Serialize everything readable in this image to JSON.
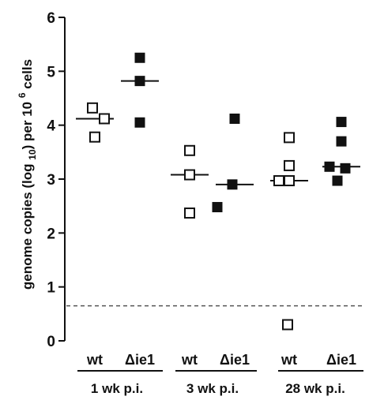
{
  "chart_data": {
    "type": "scatter",
    "ylabel": "genome copies (log 10) per 10 6 cells",
    "ylabel_parts": {
      "pre": "genome copies (log ",
      "sub": "10",
      "mid": ") per 10 ",
      "sup": "6",
      "post": " cells"
    },
    "ylim": [
      0,
      6
    ],
    "yticks": [
      "0",
      "1",
      "2",
      "3",
      "4",
      "5",
      "6"
    ],
    "threshold": 0.65,
    "groups": [
      {
        "label": "wt",
        "timepoint": "1 wk p.i.",
        "filled": false,
        "median": 4.12,
        "values": [
          4.32,
          4.12,
          3.78
        ]
      },
      {
        "label": "Δie1",
        "timepoint": "1 wk p.i.",
        "filled": true,
        "median": 4.82,
        "values": [
          5.25,
          4.82,
          4.05
        ]
      },
      {
        "label": "wt",
        "timepoint": "3 wk p.i.",
        "filled": false,
        "median": 3.08,
        "values": [
          3.53,
          3.08,
          2.37
        ]
      },
      {
        "label": "Δie1",
        "timepoint": "3 wk p.i.",
        "filled": true,
        "median": 2.9,
        "values": [
          4.12,
          2.9,
          2.48
        ]
      },
      {
        "label": "wt",
        "timepoint": "28 wk p.i.",
        "filled": false,
        "median": 2.97,
        "values": [
          3.77,
          3.25,
          2.97,
          2.97,
          0.3
        ]
      },
      {
        "label": "Δie1",
        "timepoint": "28 wk p.i.",
        "filled": true,
        "median": 3.23,
        "values": [
          4.06,
          3.7,
          3.23,
          3.2,
          2.97
        ]
      }
    ],
    "timepoints": [
      "1 wk p.i.",
      "3 wk p.i.",
      "28 wk p.i."
    ]
  }
}
